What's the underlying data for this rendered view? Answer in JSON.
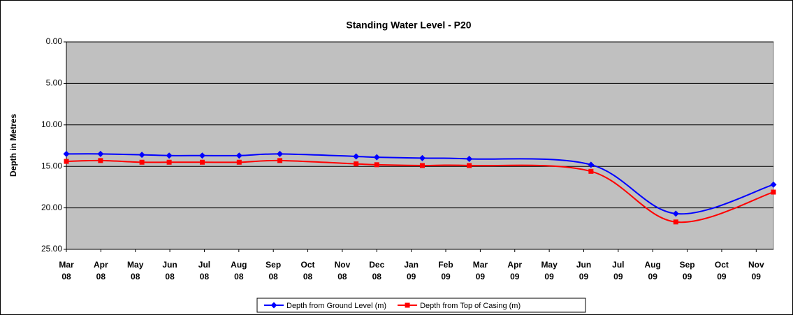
{
  "chart_data": {
    "type": "line",
    "title": "Standing Water Level - P20",
    "y_label": "Depth in Metres",
    "x": [
      0,
      0.99,
      2.19,
      2.98,
      3.94,
      5.01,
      6.19,
      8.4,
      9.0,
      10.32,
      11.68,
      15.21,
      17.67,
      20.5
    ],
    "series": [
      {
        "name": "Depth from Ground Level (m)",
        "color": "#0000ff",
        "marker": "diamond",
        "values": [
          13.5,
          13.5,
          13.6,
          13.7,
          13.7,
          13.7,
          13.5,
          13.8,
          13.9,
          14.0,
          14.1,
          14.8,
          20.7,
          17.2
        ]
      },
      {
        "name": "Depth from Top of Casing (m)",
        "color": "#ff0000",
        "marker": "square",
        "values": [
          14.4,
          14.3,
          14.5,
          14.5,
          14.5,
          14.5,
          14.3,
          14.7,
          14.8,
          14.9,
          14.9,
          15.6,
          21.7,
          18.1
        ]
      }
    ],
    "xlim": [
      0,
      20.5
    ],
    "xticks": [
      {
        "value": 0,
        "label": "Mar\n08"
      },
      {
        "value": 1,
        "label": "Apr\n08"
      },
      {
        "value": 2,
        "label": "May\n08"
      },
      {
        "value": 3,
        "label": "Jun\n08"
      },
      {
        "value": 4,
        "label": "Jul\n08"
      },
      {
        "value": 5,
        "label": "Aug\n08"
      },
      {
        "value": 6,
        "label": "Sep\n08"
      },
      {
        "value": 7,
        "label": "Oct\n08"
      },
      {
        "value": 8,
        "label": "Nov\n08"
      },
      {
        "value": 9,
        "label": "Dec\n08"
      },
      {
        "value": 10,
        "label": "Jan\n09"
      },
      {
        "value": 11,
        "label": "Feb\n09"
      },
      {
        "value": 12,
        "label": "Mar\n09"
      },
      {
        "value": 13,
        "label": "Apr\n09"
      },
      {
        "value": 14,
        "label": "May\n09"
      },
      {
        "value": 15,
        "label": "Jun\n09"
      },
      {
        "value": 16,
        "label": "Jul\n09"
      },
      {
        "value": 17,
        "label": "Aug\n09"
      },
      {
        "value": 18,
        "label": "Sep\n09"
      },
      {
        "value": 19,
        "label": "Oct\n09"
      },
      {
        "value": 20,
        "label": "Nov\n09"
      }
    ],
    "ylim": [
      0,
      25
    ],
    "y_inverted": true,
    "yticks": [
      {
        "value": 0,
        "label": "0.00"
      },
      {
        "value": 5,
        "label": "5.00"
      },
      {
        "value": 10,
        "label": "10.00"
      },
      {
        "value": 15,
        "label": "15.00"
      },
      {
        "value": 20,
        "label": "20.00"
      },
      {
        "value": 25,
        "label": "25.00"
      }
    ],
    "grid": true,
    "plot_background": "#c0c0c0",
    "legend": "bottom"
  }
}
